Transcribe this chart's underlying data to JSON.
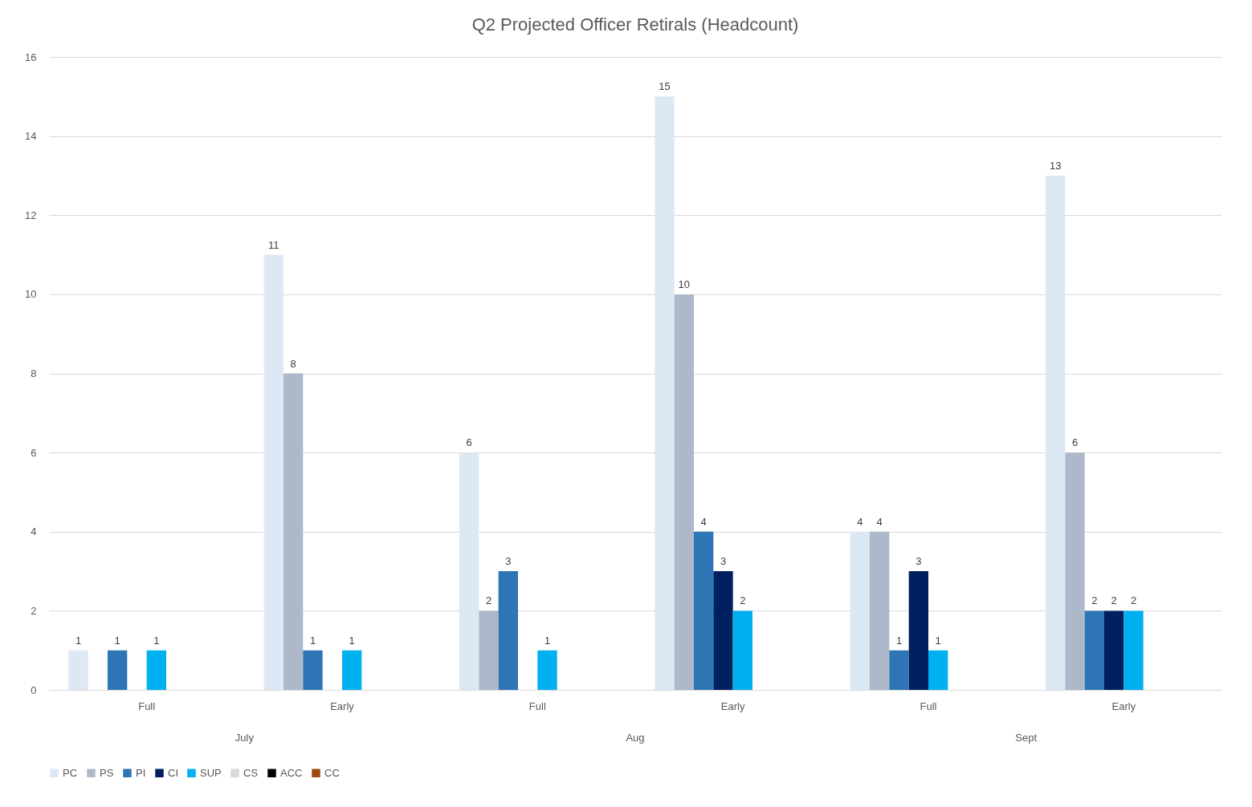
{
  "chart_data": {
    "type": "bar",
    "title": "Q2 Projected Officer Retirals (Headcount)",
    "categories": [
      "Full",
      "Early",
      "Full",
      "Early",
      "Full",
      "Early"
    ],
    "series": [
      {
        "name": "PC",
        "color": "#dde8f5",
        "values": [
          1,
          11,
          6,
          15,
          4,
          13
        ]
      },
      {
        "name": "PS",
        "color": "#adb9ca",
        "values": [
          null,
          8,
          2,
          10,
          4,
          6
        ]
      },
      {
        "name": "PI",
        "color": "#2e75b6",
        "values": [
          1,
          1,
          3,
          4,
          1,
          2
        ]
      },
      {
        "name": "CI",
        "color": "#002060",
        "values": [
          null,
          null,
          null,
          3,
          3,
          2
        ]
      },
      {
        "name": "SUP",
        "color": "#00b0f0",
        "values": [
          1,
          1,
          1,
          2,
          1,
          2
        ]
      },
      {
        "name": "CS",
        "color": "#d9d9d9",
        "values": [
          null,
          null,
          null,
          null,
          null,
          null
        ]
      },
      {
        "name": "ACC",
        "color": "#000000",
        "values": [
          null,
          null,
          null,
          null,
          null,
          null
        ]
      },
      {
        "name": "CC",
        "color": "#9e480e",
        "values": [
          null,
          null,
          null,
          null,
          null,
          null
        ]
      }
    ],
    "annotations": [
      "July",
      "Aug",
      "Sept"
    ],
    "ylim": [
      0,
      16
    ],
    "yticks": [
      0,
      2,
      4,
      6,
      8,
      10,
      12,
      14,
      16
    ],
    "grid": "y",
    "legend": "bottom",
    "data_labels": true
  }
}
